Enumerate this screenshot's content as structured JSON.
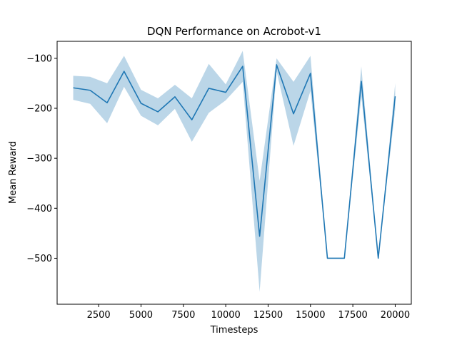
{
  "chart_data": {
    "type": "line",
    "title": "DQN Performance on Acrobot-v1",
    "xlabel": "Timesteps",
    "ylabel": "Mean Reward",
    "xlim": [
      50,
      20950
    ],
    "ylim": [
      -592,
      -66
    ],
    "xticks": [
      2500,
      5000,
      7500,
      10000,
      12500,
      15000,
      17500,
      20000
    ],
    "xtick_labels": [
      "2500",
      "5000",
      "7500",
      "10000",
      "12500",
      "15000",
      "17500",
      "20000"
    ],
    "yticks": [
      -100,
      -200,
      -300,
      -400,
      -500
    ],
    "ytick_labels": [
      "−100",
      "−200",
      "−300",
      "−400",
      "−500"
    ],
    "grid": false,
    "line_color": "#1f77b4",
    "band_color": "#1f77b4",
    "series": [
      {
        "x": [
          1000,
          2000,
          3000,
          4000,
          5000,
          6000,
          7000,
          8000,
          9000,
          10000,
          11000,
          12000,
          13000,
          14000,
          15000,
          16000,
          17000,
          18000,
          19000,
          20000
        ],
        "values": [
          -159,
          -164,
          -189,
          -126,
          -190,
          -207,
          -177,
          -223,
          -160,
          -168,
          -116,
          -456,
          -113,
          -211,
          -130,
          -500,
          -500,
          -146,
          -500,
          -176
        ],
        "upper": [
          -135,
          -137,
          -150,
          -95,
          -163,
          -180,
          -153,
          -180,
          -111,
          -152,
          -85,
          -345,
          -100,
          -147,
          -95,
          -500,
          -500,
          -116,
          -500,
          -150
        ],
        "lower": [
          -183,
          -191,
          -230,
          -157,
          -215,
          -234,
          -201,
          -267,
          -209,
          -184,
          -147,
          -567,
          -126,
          -275,
          -165,
          -500,
          -500,
          -176,
          -500,
          -202
        ]
      }
    ]
  }
}
